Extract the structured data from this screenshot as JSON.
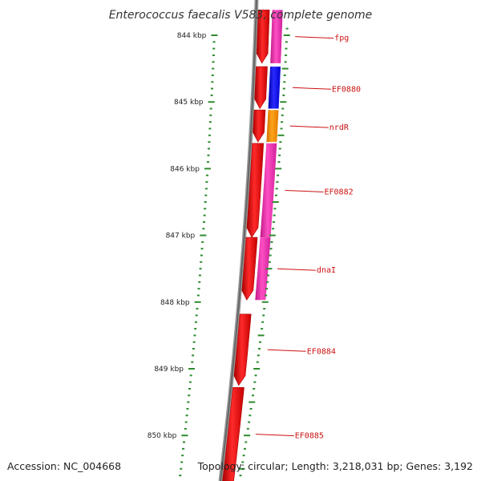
{
  "title": "Enterococcus faecalis V583, complete genome",
  "footer": {
    "accession": "Accession: NC_004668",
    "topology": "Topology: circular; Length: 3,218,031 bp; Genes: 3,192"
  },
  "colors": {
    "backbone": "#777777",
    "forward_gene": "#ff1a1a",
    "scale_tick": "#2e8b2e",
    "label_text": "#cc1111",
    "cds_pink": "#ff33bb",
    "cds_blue": "#1a1aff",
    "cds_orange": "#ff9900"
  },
  "scale_ticks": [
    {
      "pos_kbp": 844,
      "label": "844 kbp"
    },
    {
      "pos_kbp": 845,
      "label": "845 kbp"
    },
    {
      "pos_kbp": 846,
      "label": "846 kbp"
    },
    {
      "pos_kbp": 847,
      "label": "847 kbp"
    },
    {
      "pos_kbp": 848,
      "label": "848 kbp"
    },
    {
      "pos_kbp": 849,
      "label": "849 kbp"
    },
    {
      "pos_kbp": 850,
      "label": "850 kbp"
    }
  ],
  "genes": [
    {
      "label": "fpg",
      "start_kbp": 843.62,
      "end_kbp": 844.42,
      "cds_color": "cds_pink"
    },
    {
      "label": "EF0880",
      "start_kbp": 844.47,
      "end_kbp": 845.1,
      "cds_color": "cds_blue"
    },
    {
      "label": "nrdR",
      "start_kbp": 845.12,
      "end_kbp": 845.6,
      "cds_color": "cds_orange"
    },
    {
      "label": "EF0882",
      "start_kbp": 845.62,
      "end_kbp": 847.03,
      "cds_color": "cds_pink"
    },
    {
      "label": "dnaI",
      "start_kbp": 847.03,
      "end_kbp": 847.97,
      "cds_color": "cds_pink"
    },
    {
      "label": "EF0884",
      "start_kbp": 848.18,
      "end_kbp": 849.25,
      "cds_color": null
    },
    {
      "label": "EF0885",
      "start_kbp": 849.28,
      "end_kbp": 850.78,
      "cds_color": null
    }
  ]
}
